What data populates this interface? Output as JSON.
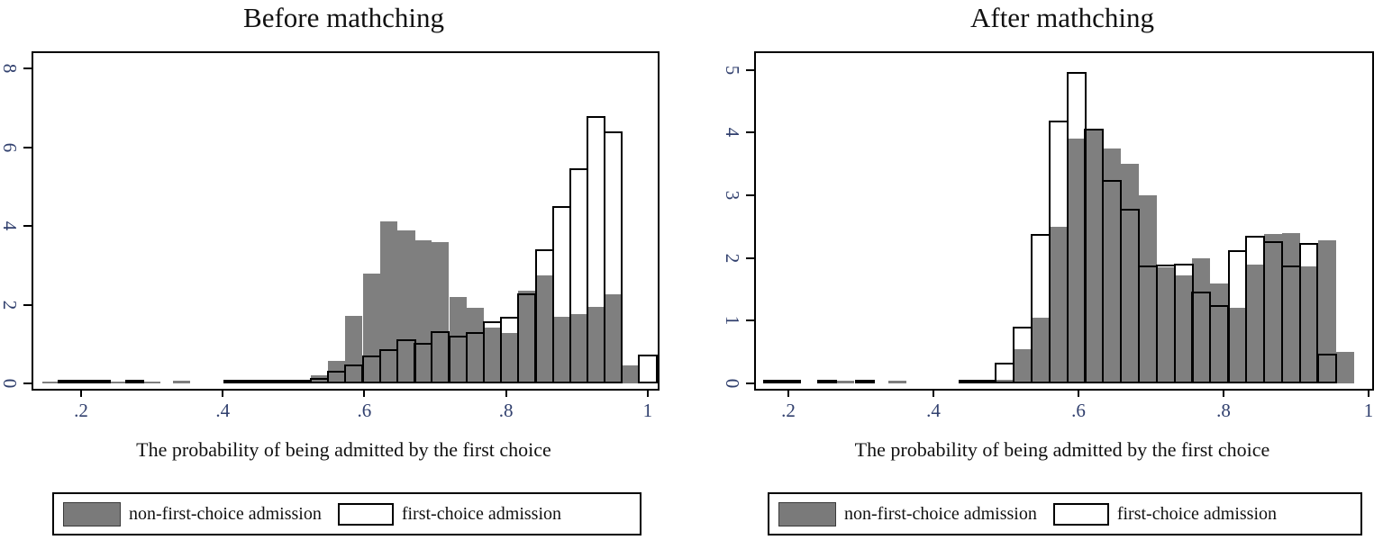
{
  "colors": {
    "bar_fill_gray": "#7f7f7f",
    "bar_outline": "#000000",
    "axis_line": "#000000",
    "tick_label": "#31406e",
    "text": "#111111",
    "background": "#ffffff"
  },
  "chart_data": [
    {
      "type": "histogram",
      "title": "Before mathching",
      "xlabel": "The probability of being admitted by the first choice",
      "series_names": [
        "non-first-choice admission",
        "first-choice admission"
      ],
      "legend_position": "below",
      "grid": false,
      "x_ticks": [
        [
          0.2,
          ".2"
        ],
        [
          0.4,
          ".4"
        ],
        [
          0.6,
          ".6"
        ],
        [
          0.8,
          ".8"
        ],
        [
          1,
          "1"
        ]
      ],
      "y_ticks": [
        [
          0,
          "0"
        ],
        [
          2,
          "2"
        ],
        [
          4,
          "4"
        ],
        [
          6,
          "6"
        ],
        [
          8,
          "8"
        ]
      ],
      "x_min": 0.1326,
      "x_max": 1.0142,
      "y_top": 8.4,
      "bin_width": 0.0244,
      "bins_comment": "each bin = [x_start, density_non_first_choice_gray, density_first_choice_hollow]",
      "bins": [
        [
          0.145,
          0.05,
          0
        ],
        [
          0.168,
          0.03,
          0.05
        ],
        [
          0.192,
          0.05,
          0.04
        ],
        [
          0.216,
          0.04,
          0.05
        ],
        [
          0.24,
          0.05,
          0
        ],
        [
          0.264,
          0,
          0.04
        ],
        [
          0.288,
          0.05,
          0
        ],
        [
          0.33,
          0.07,
          0
        ],
        [
          0.402,
          0.03,
          0.03
        ],
        [
          0.427,
          0.03,
          0.03
        ],
        [
          0.451,
          0.04,
          0.04
        ],
        [
          0.476,
          0.05,
          0.05
        ],
        [
          0.5,
          0.08,
          0.06
        ],
        [
          0.524,
          0.2,
          0.14
        ],
        [
          0.549,
          0.57,
          0.31
        ],
        [
          0.573,
          1.72,
          0.48
        ],
        [
          0.598,
          2.8,
          0.7
        ],
        [
          0.622,
          4.12,
          0.88
        ],
        [
          0.647,
          3.88,
          1.12
        ],
        [
          0.671,
          3.64,
          1.03
        ],
        [
          0.695,
          3.59,
          1.32
        ],
        [
          0.72,
          2.2,
          1.22
        ],
        [
          0.744,
          1.93,
          1.3
        ],
        [
          0.769,
          1.42,
          1.58
        ],
        [
          0.793,
          1.28,
          1.7
        ],
        [
          0.817,
          2.35,
          2.3
        ],
        [
          0.842,
          2.75,
          3.4
        ],
        [
          0.866,
          1.7,
          4.5
        ],
        [
          0.891,
          1.76,
          5.47
        ],
        [
          0.915,
          1.95,
          6.79
        ],
        [
          0.939,
          2.27,
          6.41
        ],
        [
          0.964,
          0.46,
          0
        ],
        [
          0.988,
          0,
          0.73
        ]
      ]
    },
    {
      "type": "histogram",
      "title": "After mathching",
      "xlabel": "The probability of being admitted by the first choice",
      "series_names": [
        "non-first-choice admission",
        "first-choice admission"
      ],
      "legend_position": "below",
      "grid": false,
      "x_ticks": [
        [
          0.2,
          ".2"
        ],
        [
          0.4,
          ".4"
        ],
        [
          0.6,
          ".6"
        ],
        [
          0.8,
          ".8"
        ],
        [
          1,
          "1"
        ]
      ],
      "y_ticks": [
        [
          0,
          "0"
        ],
        [
          1,
          "1"
        ],
        [
          2,
          "2"
        ],
        [
          3,
          "3"
        ],
        [
          4,
          "4"
        ],
        [
          5,
          "5"
        ]
      ],
      "x_min": 0.1553,
      "x_max": 1.005,
      "y_top": 5.27,
      "bin_width": 0.0247,
      "bins_comment": "each bin = [x_start, density_non_first_choice_gray, density_first_choice_hollow]",
      "bins": [
        [
          0.167,
          0.05,
          0.05
        ],
        [
          0.192,
          0.04,
          0.04
        ],
        [
          0.241,
          0.06,
          0.06
        ],
        [
          0.266,
          0.04,
          0
        ],
        [
          0.293,
          0,
          0.04
        ],
        [
          0.338,
          0.05,
          0
        ],
        [
          0.436,
          0.02,
          0.03
        ],
        [
          0.461,
          0.03,
          0.04
        ],
        [
          0.486,
          0.06,
          0.33
        ],
        [
          0.511,
          0.55,
          0.91
        ],
        [
          0.535,
          1.05,
          2.38
        ],
        [
          0.56,
          2.5,
          4.2
        ],
        [
          0.585,
          3.9,
          4.97
        ],
        [
          0.609,
          4.06,
          4.06
        ],
        [
          0.634,
          3.75,
          3.25
        ],
        [
          0.659,
          3.5,
          2.78
        ],
        [
          0.683,
          3.0,
          1.88
        ],
        [
          0.708,
          1.85,
          1.9
        ],
        [
          0.733,
          1.72,
          1.91
        ],
        [
          0.757,
          1.99,
          1.46
        ],
        [
          0.782,
          1.6,
          1.25
        ],
        [
          0.807,
          1.21,
          2.13
        ],
        [
          0.831,
          1.9,
          2.35
        ],
        [
          0.856,
          2.39,
          2.27
        ],
        [
          0.881,
          2.4,
          1.88
        ],
        [
          0.905,
          1.87,
          2.24
        ],
        [
          0.93,
          2.28,
          0.47
        ],
        [
          0.955,
          0.5,
          0
        ]
      ]
    }
  ]
}
